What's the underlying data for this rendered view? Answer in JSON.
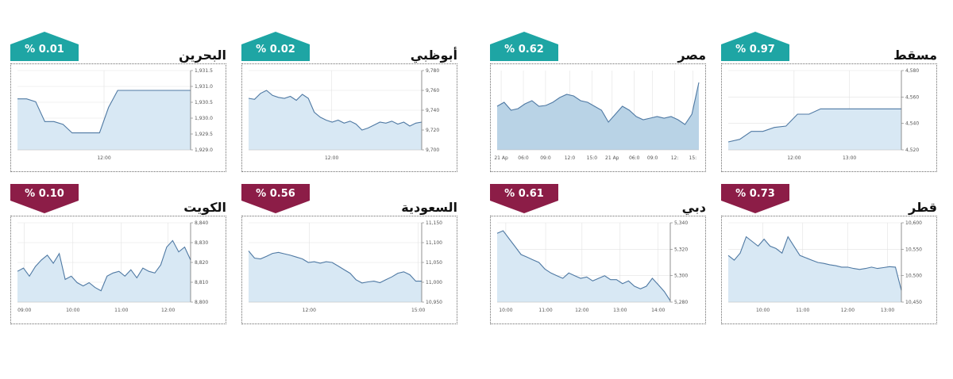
{
  "panels": [
    {
      "id": "muscat",
      "name": "مسقط",
      "change": "% 0.97",
      "direction": "up",
      "chart_data": {
        "type": "line",
        "x": [
          0,
          1,
          2,
          3,
          4,
          5,
          6,
          7,
          8,
          9,
          10,
          11,
          12,
          13,
          14,
          15
        ],
        "values": [
          4526,
          4528,
          4534,
          4534,
          4537,
          4538,
          4547,
          4547,
          4551,
          4551,
          4551,
          4551,
          4551,
          4551,
          4551,
          4551
        ],
        "ylim": [
          4520,
          4580
        ],
        "yticks": [
          "4,580",
          "4,560",
          "4,540",
          "4,520"
        ],
        "xtick_labels": [
          "12:00",
          "13:00"
        ],
        "xtick_pos": [
          0.38,
          0.7
        ],
        "style": "area"
      }
    },
    {
      "id": "egypt",
      "name": "مصر",
      "change": "% 0.62",
      "direction": "up",
      "chart_data": {
        "type": "area",
        "x": [
          0,
          1,
          2,
          3,
          4,
          5,
          6,
          7,
          8,
          9,
          10,
          11,
          12,
          13,
          14,
          15,
          16,
          17,
          18,
          19,
          20,
          21,
          22,
          23,
          24,
          25,
          26,
          27,
          28,
          29
        ],
        "values": [
          0.55,
          0.6,
          0.5,
          0.52,
          0.58,
          0.62,
          0.55,
          0.56,
          0.6,
          0.66,
          0.7,
          0.68,
          0.62,
          0.6,
          0.55,
          0.5,
          0.35,
          0.45,
          0.55,
          0.5,
          0.42,
          0.38,
          0.4,
          0.42,
          0.4,
          0.42,
          0.38,
          0.32,
          0.45,
          0.85
        ],
        "ylim": [
          0,
          1
        ],
        "yticks": [],
        "xtick_labels": [
          "21 Ap",
          "06:0",
          "09:0",
          "12:0",
          "15:0",
          "21 Ap",
          "06:0",
          "09:0",
          "12:",
          "15:"
        ],
        "xtick_pos": [
          0.02,
          0.13,
          0.24,
          0.36,
          0.47,
          0.57,
          0.68,
          0.77,
          0.88,
          0.97
        ],
        "style": "area"
      }
    },
    {
      "id": "abudhabi",
      "name": "أبوظبي",
      "change": "% 0.02",
      "direction": "up",
      "chart_data": {
        "type": "line",
        "x": [
          0,
          1,
          2,
          3,
          4,
          5,
          6,
          7,
          8,
          9,
          10,
          11,
          12,
          13,
          14,
          15,
          16,
          17,
          18,
          19,
          20,
          21,
          22,
          23,
          24,
          25,
          26,
          27,
          28,
          29
        ],
        "values": [
          9752,
          9751,
          9757,
          9760,
          9755,
          9753,
          9752,
          9754,
          9750,
          9756,
          9752,
          9738,
          9733,
          9730,
          9728,
          9730,
          9727,
          9729,
          9726,
          9720,
          9722,
          9725,
          9728,
          9727,
          9729,
          9726,
          9728,
          9724,
          9727,
          9728
        ],
        "ylim": [
          9700,
          9780
        ],
        "yticks": [
          "9,780",
          "9,760",
          "9,740",
          "9,720",
          "9,700"
        ],
        "xtick_labels": [
          "12:00"
        ],
        "xtick_pos": [
          0.48
        ],
        "style": "area"
      }
    },
    {
      "id": "bahrain",
      "name": "البحرين",
      "change": "% 0.01",
      "direction": "up",
      "chart_data": {
        "type": "line",
        "x": [
          0,
          1,
          2,
          3,
          4,
          5,
          6,
          7,
          8,
          9,
          10,
          11,
          12,
          13,
          14,
          15,
          16,
          17,
          18,
          19
        ],
        "values": [
          1930.6,
          1930.6,
          1930.5,
          1929.8,
          1929.8,
          1929.7,
          1929.4,
          1929.4,
          1929.4,
          1929.4,
          1930.3,
          1930.9,
          1930.9,
          1930.9,
          1930.9,
          1930.9,
          1930.9,
          1930.9,
          1930.9,
          1930.9
        ],
        "ylim": [
          1928.8,
          1931.6
        ],
        "yticks": [
          "1,931.5",
          "1,931.0",
          "1,930.5",
          "1,930.0",
          "1,929.5",
          "1,929.0"
        ],
        "xtick_labels": [
          "12:00"
        ],
        "xtick_pos": [
          0.5
        ],
        "style": "area"
      }
    },
    {
      "id": "qatar",
      "name": "قطر",
      "change": "% 0.73",
      "direction": "down",
      "chart_data": {
        "type": "line",
        "x": [
          0,
          1,
          2,
          3,
          4,
          5,
          6,
          7,
          8,
          9,
          10,
          11,
          12,
          13,
          14,
          15,
          16,
          17,
          18,
          19,
          20,
          21,
          22,
          23,
          24,
          25,
          26,
          27,
          28,
          29
        ],
        "values": [
          10540,
          10530,
          10545,
          10580,
          10570,
          10560,
          10575,
          10560,
          10555,
          10545,
          10580,
          10560,
          10540,
          10535,
          10530,
          10525,
          10523,
          10520,
          10518,
          10515,
          10515,
          10512,
          10510,
          10512,
          10515,
          10512,
          10514,
          10516,
          10515,
          10465
        ],
        "ylim": [
          10440,
          10610
        ],
        "yticks": [
          "10,600",
          "10,550",
          "10,500",
          "10,450"
        ],
        "xtick_labels": [
          "10:00",
          "11:00",
          "12:00",
          "13:00"
        ],
        "xtick_pos": [
          0.2,
          0.43,
          0.69,
          0.92
        ],
        "style": "area"
      }
    },
    {
      "id": "dubai",
      "name": "دبي",
      "change": "% 0.61",
      "direction": "down",
      "chart_data": {
        "type": "line",
        "x": [
          0,
          1,
          2,
          3,
          4,
          5,
          6,
          7,
          8,
          9,
          10,
          11,
          12,
          13,
          14,
          15,
          16,
          17,
          18,
          19,
          20,
          21,
          22,
          23,
          24,
          25,
          26,
          27,
          28,
          29
        ],
        "values": [
          5332,
          5334,
          5328,
          5322,
          5316,
          5314,
          5312,
          5310,
          5305,
          5302,
          5300,
          5298,
          5302,
          5300,
          5298,
          5299,
          5296,
          5298,
          5300,
          5297,
          5297,
          5294,
          5296,
          5292,
          5290,
          5292,
          5298,
          5293,
          5288,
          5281
        ],
        "ylim": [
          5280,
          5340
        ],
        "yticks": [
          "5,340",
          "5,320",
          "5,300",
          "5,280"
        ],
        "xtick_labels": [
          "10:00",
          "11:00",
          "12:00",
          "13:00",
          "14:00"
        ],
        "xtick_pos": [
          0.05,
          0.28,
          0.49,
          0.71,
          0.93
        ],
        "style": "area"
      }
    },
    {
      "id": "saudi",
      "name": "السعودية",
      "change": "% 0.56",
      "direction": "down",
      "chart_data": {
        "type": "line",
        "x": [
          0,
          1,
          2,
          3,
          4,
          5,
          6,
          7,
          8,
          9,
          10,
          11,
          12,
          13,
          14,
          15,
          16,
          17,
          18,
          19,
          20,
          21,
          22,
          23,
          24,
          25,
          26,
          27,
          28,
          29
        ],
        "values": [
          11082,
          11062,
          11060,
          11067,
          11075,
          11078,
          11074,
          11070,
          11065,
          11060,
          11050,
          11052,
          11048,
          11052,
          11050,
          11040,
          11030,
          11020,
          11002,
          10993,
          10996,
          10998,
          10994,
          11002,
          11010,
          11020,
          11024,
          11016,
          10998,
          10998
        ],
        "ylim": [
          10940,
          11160
        ],
        "yticks": [
          "11,150",
          "11,100",
          "11,050",
          "11,000",
          "10,950"
        ],
        "xtick_labels": [
          "12:00",
          "15:00"
        ],
        "xtick_pos": [
          0.35,
          0.98
        ],
        "style": "area"
      }
    },
    {
      "id": "kuwait",
      "name": "الكويت",
      "change": "% 0.10",
      "direction": "down",
      "chart_data": {
        "type": "line",
        "x": [
          0,
          1,
          2,
          3,
          4,
          5,
          6,
          7,
          8,
          9,
          10,
          11,
          12,
          13,
          14,
          15,
          16,
          17,
          18,
          19,
          20,
          21,
          22,
          23,
          24,
          25,
          26,
          27,
          28,
          29
        ],
        "values": [
          8815,
          8817,
          8812,
          8818,
          8822,
          8825,
          8820,
          8826,
          8810,
          8812,
          8808,
          8806,
          8808,
          8805,
          8803,
          8812,
          8814,
          8815,
          8812,
          8816,
          8811,
          8817,
          8815,
          8814,
          8819,
          8830,
          8834,
          8827,
          8830,
          8822
        ],
        "ylim": [
          8796,
          8845
        ],
        "yticks": [
          "8,840",
          "8,830",
          "8,820",
          "8,810",
          "8,800"
        ],
        "xtick_labels": [
          "09:00",
          "10:00",
          "11:00",
          "12:00"
        ],
        "xtick_pos": [
          0.04,
          0.32,
          0.6,
          0.87
        ],
        "style": "area"
      }
    }
  ]
}
